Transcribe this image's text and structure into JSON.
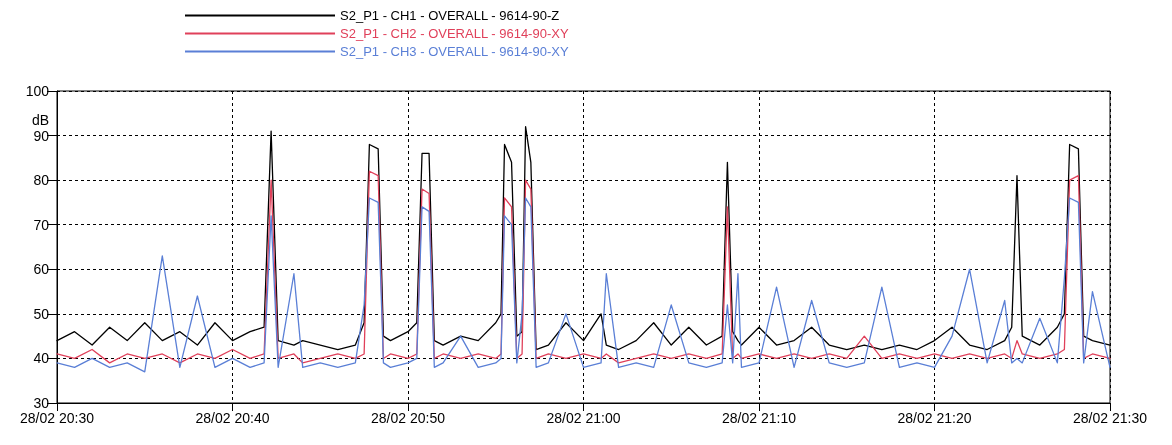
{
  "chart_data": {
    "type": "line",
    "ylabel": "dB",
    "x": [
      "--02-28T20:30",
      "--02-28T20:31",
      "--02-28T20:32",
      "--02-28T20:33",
      "--02-28T20:34",
      "--02-28T20:35",
      "--02-28T20:36",
      "--02-28T20:37",
      "--02-28T20:38",
      "--02-28T20:39",
      "--02-28T20:40",
      "--02-28T20:41",
      "--02-28T20:41:48",
      "--02-28T20:42:12",
      "--02-28T20:42:36",
      "--02-28T20:43:30",
      "--02-28T20:44",
      "--02-28T20:45",
      "--02-28T20:46",
      "--02-28T20:47",
      "--02-28T20:47:30",
      "--02-28T20:47:48",
      "--02-28T20:48:18",
      "--02-28T20:48:36",
      "--02-28T20:49",
      "--02-28T20:50",
      "--02-28T20:50:30",
      "--02-28T20:50:48",
      "--02-28T20:51:12",
      "--02-28T20:51:30",
      "--02-28T20:52",
      "--02-28T20:53",
      "--02-28T20:54",
      "--02-28T20:55",
      "--02-28T20:55:18",
      "--02-28T20:55:30",
      "--02-28T20:55:54",
      "--02-28T20:56:12",
      "--02-28T20:56:30",
      "--02-28T20:56:42",
      "--02-28T20:57",
      "--02-28T20:57:18",
      "--02-28T20:58",
      "--02-28T20:59",
      "--02-28T21:00",
      "--02-28T21:01",
      "--02-28T21:01:18",
      "--02-28T21:02",
      "--02-28T21:03",
      "--02-28T21:04",
      "--02-28T21:05",
      "--02-28T21:06",
      "--02-28T21:07",
      "--02-28T21:07:54",
      "--02-28T21:08:12",
      "--02-28T21:08:30",
      "--02-28T21:08:48",
      "--02-28T21:09",
      "--02-28T21:10",
      "--02-28T21:11",
      "--02-28T21:12",
      "--02-28T21:13",
      "--02-28T21:14",
      "--02-28T21:15",
      "--02-28T21:16",
      "--02-28T21:17",
      "--02-28T21:18",
      "--02-28T21:19",
      "--02-28T21:20",
      "--02-28T21:21",
      "--02-28T21:22",
      "--02-28T21:23",
      "--02-28T21:24",
      "--02-28T21:24:24",
      "--02-28T21:24:42",
      "--02-28T21:25",
      "--02-28T21:26",
      "--02-28T21:27",
      "--02-28T21:27:24",
      "--02-28T21:27:42",
      "--02-28T21:28:12",
      "--02-28T21:28:30",
      "--02-28T21:29",
      "--02-28T21:30"
    ],
    "series": [
      {
        "name": "S2_P1 - CH1 - OVERALL - 9614-90-Z",
        "color": "#000000",
        "values": [
          44,
          46,
          43,
          47,
          44,
          48,
          44,
          46,
          43,
          48,
          44,
          46,
          47,
          91,
          44,
          43,
          44,
          43,
          42,
          43,
          48,
          88,
          87,
          45,
          44,
          46,
          48,
          86,
          86,
          44,
          43,
          45,
          44,
          48,
          50,
          88,
          84,
          45,
          46,
          92,
          84,
          42,
          43,
          48,
          44,
          50,
          43,
          42,
          44,
          48,
          43,
          47,
          43,
          45,
          84,
          46,
          44,
          43,
          47,
          43,
          44,
          47,
          43,
          42,
          43,
          42,
          43,
          42,
          44,
          47,
          43,
          42,
          44,
          47,
          81,
          45,
          43,
          47,
          50,
          88,
          87,
          45,
          44,
          43
        ]
      },
      {
        "name": "S2_P1 - CH2 - OVERALL - 9614-90-XY",
        "color": "#e0405a",
        "values": [
          41,
          40,
          42,
          39,
          41,
          40,
          41,
          39,
          41,
          40,
          42,
          40,
          41,
          80,
          40,
          41,
          39,
          40,
          41,
          40,
          41,
          82,
          81,
          40,
          41,
          40,
          41,
          78,
          77,
          40,
          41,
          40,
          41,
          40,
          41,
          76,
          74,
          40,
          41,
          80,
          78,
          40,
          41,
          40,
          41,
          40,
          41,
          39,
          40,
          41,
          40,
          41,
          40,
          41,
          74,
          40,
          41,
          40,
          41,
          40,
          41,
          40,
          41,
          40,
          45,
          40,
          41,
          40,
          41,
          40,
          41,
          40,
          41,
          40,
          44,
          41,
          40,
          41,
          42,
          80,
          81,
          40,
          41,
          40
        ]
      },
      {
        "name": "S2_P1 - CH3 - OVERALL - 9614-90-XY",
        "color": "#5a7fd6",
        "values": [
          39,
          38,
          40,
          38,
          39,
          37,
          63,
          38,
          54,
          38,
          40,
          38,
          39,
          72,
          38,
          59,
          38,
          39,
          38,
          39,
          52,
          76,
          75,
          39,
          38,
          39,
          40,
          74,
          73,
          38,
          39,
          45,
          38,
          39,
          40,
          72,
          70,
          39,
          50,
          76,
          74,
          38,
          39,
          50,
          38,
          39,
          59,
          38,
          39,
          38,
          52,
          39,
          38,
          39,
          52,
          39,
          59,
          38,
          39,
          56,
          38,
          53,
          39,
          38,
          39,
          56,
          38,
          39,
          38,
          45,
          60,
          39,
          53,
          39,
          40,
          39,
          49,
          39,
          58,
          76,
          75,
          39,
          55,
          38
        ]
      }
    ],
    "xlim": [
      "--02-28T20:30",
      "--02-28T21:30"
    ],
    "xticks": [
      {
        "value": "--02-28T20:30",
        "label": "28/02 20:30"
      },
      {
        "value": "--02-28T20:40",
        "label": "28/02 20:40"
      },
      {
        "value": "--02-28T20:50",
        "label": "28/02 20:50"
      },
      {
        "value": "--02-28T21:00",
        "label": "28/02 21:00"
      },
      {
        "value": "--02-28T21:10",
        "label": "28/02 21:10"
      },
      {
        "value": "--02-28T21:20",
        "label": "28/02 21:20"
      },
      {
        "value": "--02-28T21:30",
        "label": "28/02 21:30"
      }
    ],
    "ylim": [
      30,
      100
    ],
    "yticks": [
      30,
      40,
      50,
      60,
      70,
      80,
      90,
      100
    ],
    "grid": true,
    "legend": "top left",
    "marker": "none",
    "line_style": "solid"
  }
}
